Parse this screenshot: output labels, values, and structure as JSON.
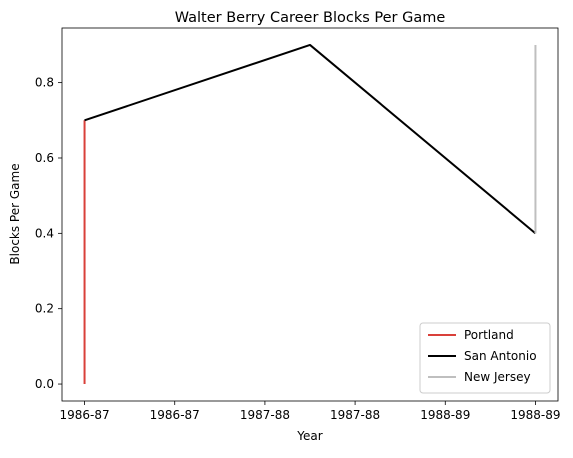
{
  "chart_data": {
    "type": "line",
    "title": "Walter Berry  Career Blocks Per Game",
    "xlabel": "Year",
    "ylabel": "Blocks Per Game",
    "x_tick_labels": [
      "1986-87",
      "1986-87",
      "1987-88",
      "1987-88",
      "1988-89",
      "1988-89"
    ],
    "xlim": [
      -0.25,
      5.25
    ],
    "ylim": [
      -0.045,
      0.945
    ],
    "y_ticks": [
      0.0,
      0.2,
      0.4,
      0.6,
      0.8
    ],
    "y_tick_labels": [
      "0.0",
      "0.2",
      "0.4",
      "0.6",
      "0.8"
    ],
    "grid": false,
    "legend_position": "lower-right",
    "series": [
      {
        "name": "Portland",
        "color": "#d9403a",
        "points": [
          [
            0,
            0.0
          ],
          [
            0,
            0.7
          ]
        ]
      },
      {
        "name": "San Antonio",
        "color": "#000000",
        "points": [
          [
            0,
            0.7
          ],
          [
            2.5,
            0.9
          ],
          [
            5,
            0.4
          ]
        ]
      },
      {
        "name": "New Jersey",
        "color": "#bfbfbf",
        "points": [
          [
            5,
            0.4
          ],
          [
            5,
            0.9
          ]
        ]
      }
    ]
  }
}
